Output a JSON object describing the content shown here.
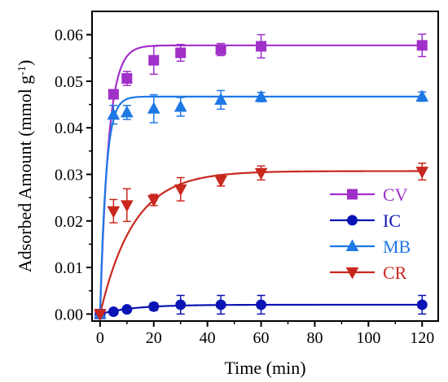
{
  "chart_data": {
    "type": "line",
    "xlabel": "Time (min)",
    "ylabel_main": "Adsorbed Amount (mmol g",
    "ylabel_sup": "-1",
    "ylabel_close": ")",
    "xlim": [
      -3,
      126
    ],
    "ylim": [
      -0.0015,
      0.065
    ],
    "xticks": [
      0,
      20,
      40,
      60,
      80,
      100,
      120
    ],
    "yticks": [
      0.0,
      0.01,
      0.02,
      0.03,
      0.04,
      0.05,
      0.06
    ],
    "ytick_labels": [
      "0.00",
      "0.01",
      "0.02",
      "0.03",
      "0.04",
      "0.05",
      "0.06"
    ],
    "grid": false,
    "legend_position": "lower-right",
    "series": [
      {
        "name": "CV",
        "color": "#A030C8",
        "marker": "square",
        "x": [
          0,
          5,
          10,
          20,
          30,
          45,
          60,
          120
        ],
        "y": [
          0,
          0.0472,
          0.0506,
          0.0545,
          0.0561,
          0.0568,
          0.0575,
          0.0577
        ],
        "err": [
          0,
          0,
          0.0015,
          0.003,
          0.0018,
          0.0013,
          0.0025,
          0.0024
        ],
        "fit": {
          "qe": 0.0577,
          "k": 0.32
        }
      },
      {
        "name": "IC",
        "color": "#0A14B4",
        "marker": "circle",
        "x": [
          0,
          5,
          10,
          20,
          30,
          45,
          60,
          120
        ],
        "y": [
          0,
          0.0005,
          0.001,
          0.0016,
          0.002,
          0.002,
          0.002,
          0.002
        ],
        "err": [
          0,
          0,
          0,
          0.0008,
          0.002,
          0.002,
          0.002,
          0.002
        ],
        "fit": {
          "qe": 0.002,
          "k": 0.08
        }
      },
      {
        "name": "MB",
        "color": "#1E78E6",
        "marker": "triangle-up",
        "x": [
          0,
          5,
          10,
          20,
          30,
          45,
          60,
          120
        ],
        "y": [
          0,
          0.0428,
          0.0433,
          0.0441,
          0.0445,
          0.046,
          0.0466,
          0.0467
        ],
        "err": [
          0,
          0.002,
          0.0015,
          0.003,
          0.002,
          0.002,
          0.001,
          0.001
        ],
        "fit": {
          "qe": 0.0467,
          "k": 0.45
        }
      },
      {
        "name": "CR",
        "color": "#C8281E",
        "marker": "triangle-down",
        "x": [
          0,
          5,
          10,
          20,
          30,
          45,
          60,
          120
        ],
        "y": [
          0,
          0.0221,
          0.0234,
          0.0245,
          0.0268,
          0.0287,
          0.0303,
          0.0306
        ],
        "err": [
          0,
          0.0025,
          0.0035,
          0.0012,
          0.0025,
          0.0012,
          0.0015,
          0.0018
        ],
        "fit": {
          "qe": 0.0307,
          "k": 0.08
        }
      }
    ]
  }
}
